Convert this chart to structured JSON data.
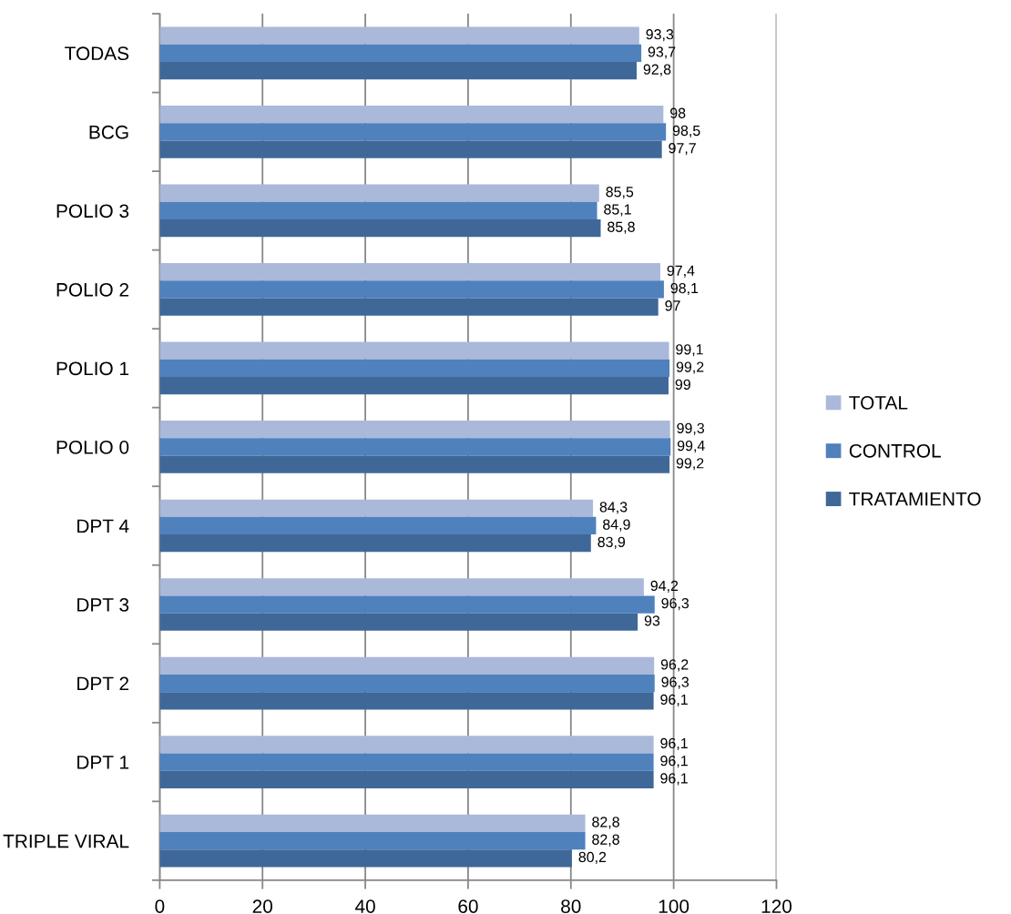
{
  "chart_data": {
    "type": "bar",
    "orientation": "horizontal",
    "categories": [
      "TODAS",
      "BCG",
      "POLIO 3",
      "POLIO 2",
      "POLIO 1",
      "POLIO 0",
      "DPT 4",
      "DPT 3",
      "DPT 2",
      "DPT 1",
      "TRIPLE VIRAL"
    ],
    "series": [
      {
        "name": "TOTAL",
        "color": "#aab9d9",
        "values": [
          93.3,
          98,
          85.5,
          97.4,
          99.1,
          99.3,
          84.3,
          94.2,
          96.2,
          96.1,
          82.8
        ],
        "value_labels": [
          "93,3",
          "98",
          "85,5",
          "97,4",
          "99,1",
          "99,3",
          "84,3",
          "94,2",
          "96,2",
          "96,1",
          "82,8"
        ]
      },
      {
        "name": "CONTROL",
        "color": "#4f81bd",
        "values": [
          93.7,
          98.5,
          85.1,
          98.1,
          99.2,
          99.4,
          84.9,
          96.3,
          96.3,
          96.1,
          82.8
        ],
        "value_labels": [
          "93,7",
          "98,5",
          "85,1",
          "98,1",
          "99,2",
          "99,4",
          "84,9",
          "96,3",
          "96,3",
          "96,1",
          "82,8"
        ]
      },
      {
        "name": "TRATAMIENTO",
        "color": "#3f6899",
        "values": [
          92.8,
          97.7,
          85.8,
          97,
          99,
          99.2,
          83.9,
          93,
          96.1,
          96.1,
          80.2
        ],
        "value_labels": [
          "92,8",
          "97,7",
          "85,8",
          "97",
          "99",
          "99,2",
          "83,9",
          "93",
          "96,1",
          "96,1",
          "80,2"
        ]
      }
    ],
    "xlim": [
      0,
      120
    ],
    "xticks": [
      0,
      20,
      40,
      60,
      80,
      100,
      120
    ],
    "grid": "x",
    "legend": "right"
  }
}
